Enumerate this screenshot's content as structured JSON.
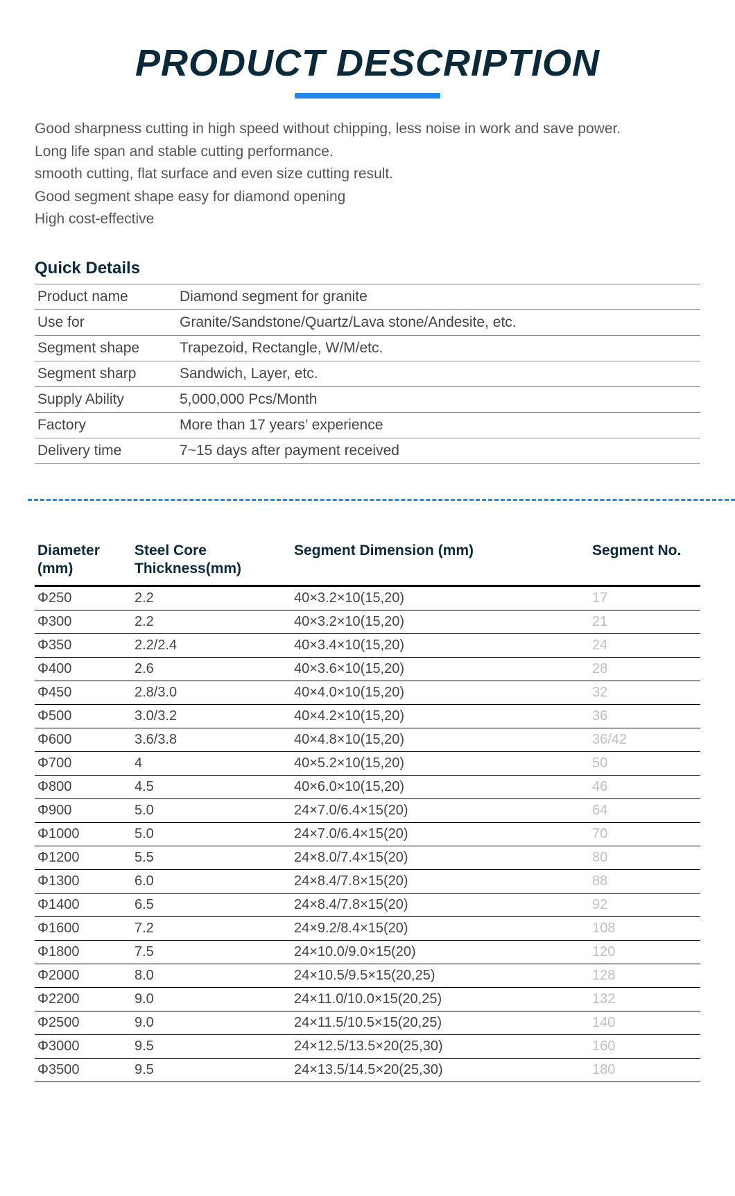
{
  "title": "PRODUCT DESCRIPTION",
  "features": [
    "Good sharpness cutting in high speed without chipping, less noise in work and save power.",
    "Long life span and stable cutting performance.",
    "smooth cutting, flat surface and even size cutting result.",
    "Good segment shape easy for diamond opening",
    "High cost-effective"
  ],
  "quick_details": {
    "heading": "Quick Details",
    "rows": [
      {
        "label": "Product name",
        "value": "Diamond segment for granite"
      },
      {
        "label": "Use for",
        "value": "Granite/Sandstone/Quartz/Lava stone/Andesite, etc."
      },
      {
        "label": "Segment shape",
        "value": "Trapezoid, Rectangle, W/M/etc."
      },
      {
        "label": "Segment sharp",
        "value": "Sandwich, Layer, etc."
      },
      {
        "label": "Supply Ability",
        "value": "5,000,000 Pcs/Month"
      },
      {
        "label": "Factory",
        "value": "More than 17 years’ experience"
      },
      {
        "label": "Delivery time",
        "value": "7~15 days after payment received"
      }
    ]
  },
  "spec_table": {
    "headers": {
      "diameter": "Diameter (mm)",
      "core": "Steel Core Thickness(mm)",
      "dim": "Segment Dimension  (mm)",
      "segno": "Segment No."
    },
    "rows": [
      {
        "diameter": "Φ250",
        "core": "2.2",
        "dim": "40×3.2×10(15,20)",
        "segno": "17"
      },
      {
        "diameter": "Φ300",
        "core": "2.2",
        "dim": "40×3.2×10(15,20)",
        "segno": "21"
      },
      {
        "diameter": "Φ350",
        "core": "2.2/2.4",
        "dim": "40×3.4×10(15,20)",
        "segno": "24"
      },
      {
        "diameter": "Φ400",
        "core": "2.6",
        "dim": "40×3.6×10(15,20)",
        "segno": "28"
      },
      {
        "diameter": "Φ450",
        "core": "2.8/3.0",
        "dim": "40×4.0×10(15,20)",
        "segno": "32"
      },
      {
        "diameter": "Φ500",
        "core": "3.0/3.2",
        "dim": "40×4.2×10(15,20)",
        "segno": "36"
      },
      {
        "diameter": "Φ600",
        "core": "3.6/3.8",
        "dim": "40×4.8×10(15,20)",
        "segno": "36/42"
      },
      {
        "diameter": "Φ700",
        "core": "4",
        "dim": "40×5.2×10(15,20)",
        "segno": "50"
      },
      {
        "diameter": "Φ800",
        "core": "4.5",
        "dim": "40×6.0×10(15,20)",
        "segno": "46"
      },
      {
        "diameter": "Φ900",
        "core": "5.0",
        "dim": "24×7.0/6.4×15(20)",
        "segno": "64"
      },
      {
        "diameter": "Φ1000",
        "core": "5.0",
        "dim": "24×7.0/6.4×15(20)",
        "segno": "70"
      },
      {
        "diameter": "Φ1200",
        "core": "5.5",
        "dim": "24×8.0/7.4×15(20)",
        "segno": "80"
      },
      {
        "diameter": "Φ1300",
        "core": "6.0",
        "dim": "24×8.4/7.8×15(20)",
        "segno": "88"
      },
      {
        "diameter": "Φ1400",
        "core": "6.5",
        "dim": "24×8.4/7.8×15(20)",
        "segno": "92"
      },
      {
        "diameter": "Φ1600",
        "core": "7.2",
        "dim": "24×9.2/8.4×15(20)",
        "segno": "108"
      },
      {
        "diameter": "Φ1800",
        "core": "7.5",
        "dim": "24×10.0/9.0×15(20)",
        "segno": "120"
      },
      {
        "diameter": "Φ2000",
        "core": "8.0",
        "dim": "24×10.5/9.5×15(20,25)",
        "segno": "128"
      },
      {
        "diameter": "Φ2200",
        "core": "9.0",
        "dim": "24×11.0/10.0×15(20,25)",
        "segno": "132"
      },
      {
        "diameter": "Φ2500",
        "core": "9.0",
        "dim": "24×11.5/10.5×15(20,25)",
        "segno": "140"
      },
      {
        "diameter": "Φ3000",
        "core": "9.5",
        "dim": "24×12.5/13.5×20(25,30)",
        "segno": "160"
      },
      {
        "diameter": "Φ3500",
        "core": "9.5",
        "dim": "24×13.5/14.5×20(25,30)",
        "segno": "180"
      }
    ]
  },
  "colors": {
    "title": "#0a2a3a",
    "accent": "#1e88f0",
    "body_text": "#444444",
    "muted": "#bfbfbf",
    "border": "#000000",
    "background": "#ffffff"
  }
}
